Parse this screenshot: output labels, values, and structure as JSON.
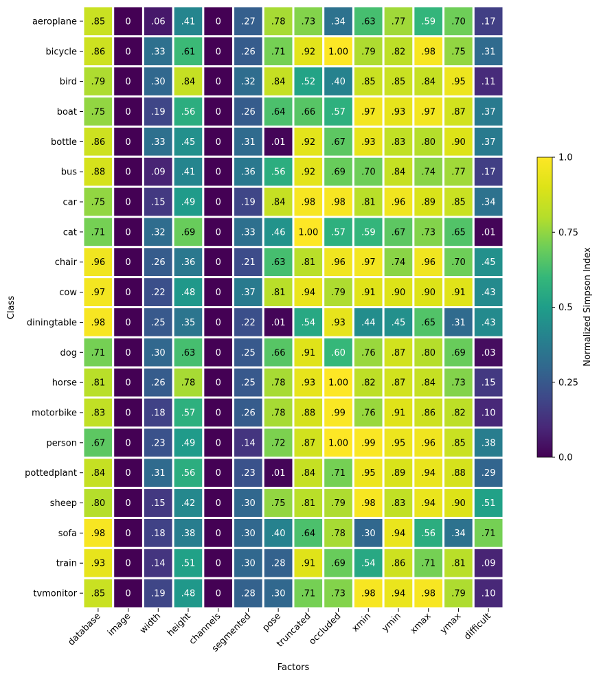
{
  "chart_data": {
    "type": "heatmap",
    "title": "",
    "xlabel": "Factors",
    "ylabel": "Class",
    "colorbar": {
      "label": "Normalized Simpson Index",
      "range": [
        0,
        1
      ],
      "ticks": [
        0,
        0.25,
        0.5,
        0.75,
        1
      ],
      "tick_labels": [
        "0.0",
        "0.25",
        "0.5",
        "0.75",
        "1.0"
      ],
      "colormap": "viridis"
    },
    "x_categories": [
      "database",
      "image",
      "width",
      "height",
      "channels",
      "segmented",
      "pose",
      "truncated",
      "occluded",
      "xmin",
      "ymin",
      "xmax",
      "ymax",
      "difficult"
    ],
    "y_categories": [
      "aeroplane",
      "bicycle",
      "bird",
      "boat",
      "bottle",
      "bus",
      "car",
      "cat",
      "chair",
      "cow",
      "diningtable",
      "dog",
      "horse",
      "motorbike",
      "person",
      "pottedplant",
      "sheep",
      "sofa",
      "train",
      "tvmonitor"
    ],
    "values": [
      [
        0.85,
        0,
        0.06,
        0.41,
        0,
        0.27,
        0.78,
        0.73,
        0.34,
        0.63,
        0.77,
        0.59,
        0.7,
        0.17
      ],
      [
        0.86,
        0,
        0.33,
        0.61,
        0,
        0.26,
        0.71,
        0.92,
        1.0,
        0.79,
        0.82,
        0.98,
        0.75,
        0.31
      ],
      [
        0.79,
        0,
        0.3,
        0.84,
        0,
        0.32,
        0.84,
        0.52,
        0.4,
        0.85,
        0.85,
        0.84,
        0.95,
        0.11
      ],
      [
        0.75,
        0,
        0.19,
        0.56,
        0,
        0.26,
        0.64,
        0.66,
        0.57,
        0.97,
        0.93,
        0.97,
        0.87,
        0.37
      ],
      [
        0.86,
        0,
        0.33,
        0.45,
        0,
        0.31,
        0.01,
        0.92,
        0.67,
        0.93,
        0.83,
        0.8,
        0.9,
        0.37
      ],
      [
        0.88,
        0,
        0.09,
        0.41,
        0,
        0.36,
        0.56,
        0.92,
        0.69,
        0.7,
        0.84,
        0.74,
        0.77,
        0.17
      ],
      [
        0.75,
        0,
        0.15,
        0.49,
        0,
        0.19,
        0.84,
        0.98,
        0.98,
        0.81,
        0.96,
        0.89,
        0.85,
        0.34
      ],
      [
        0.71,
        0,
        0.32,
        0.69,
        0,
        0.33,
        0.46,
        1.0,
        0.57,
        0.59,
        0.67,
        0.73,
        0.65,
        0.01
      ],
      [
        0.96,
        0,
        0.26,
        0.36,
        0,
        0.21,
        0.63,
        0.81,
        0.96,
        0.97,
        0.74,
        0.96,
        0.7,
        0.45
      ],
      [
        0.97,
        0,
        0.22,
        0.48,
        0,
        0.37,
        0.81,
        0.94,
        0.79,
        0.91,
        0.9,
        0.9,
        0.91,
        0.43
      ],
      [
        0.98,
        0,
        0.25,
        0.35,
        0,
        0.22,
        0.01,
        0.54,
        0.93,
        0.44,
        0.45,
        0.65,
        0.31,
        0.43
      ],
      [
        0.71,
        0,
        0.3,
        0.63,
        0,
        0.25,
        0.66,
        0.91,
        0.6,
        0.76,
        0.87,
        0.8,
        0.69,
        0.03
      ],
      [
        0.81,
        0,
        0.26,
        0.78,
        0,
        0.25,
        0.78,
        0.93,
        1.0,
        0.82,
        0.87,
        0.84,
        0.73,
        0.15
      ],
      [
        0.83,
        0,
        0.18,
        0.57,
        0,
        0.26,
        0.78,
        0.88,
        0.99,
        0.76,
        0.91,
        0.86,
        0.82,
        0.1
      ],
      [
        0.67,
        0,
        0.23,
        0.49,
        0,
        0.14,
        0.72,
        0.87,
        1.0,
        0.99,
        0.95,
        0.96,
        0.85,
        0.38
      ],
      [
        0.84,
        0,
        0.31,
        0.56,
        0,
        0.23,
        0.01,
        0.84,
        0.71,
        0.95,
        0.89,
        0.94,
        0.88,
        0.29
      ],
      [
        0.8,
        0,
        0.15,
        0.42,
        0,
        0.3,
        0.75,
        0.81,
        0.79,
        0.98,
        0.83,
        0.94,
        0.9,
        0.51
      ],
      [
        0.98,
        0,
        0.18,
        0.38,
        0,
        0.3,
        0.4,
        0.64,
        0.78,
        0.3,
        0.94,
        0.56,
        0.34,
        0.71
      ],
      [
        0.93,
        0,
        0.14,
        0.51,
        0,
        0.3,
        0.28,
        0.91,
        0.69,
        0.54,
        0.86,
        0.71,
        0.81,
        0.09
      ],
      [
        0.85,
        0,
        0.19,
        0.48,
        0,
        0.28,
        0.3,
        0.71,
        0.73,
        0.98,
        0.94,
        0.98,
        0.79,
        0.1
      ]
    ],
    "cell_labels": [
      [
        ".85",
        "0",
        ".06",
        ".41",
        "0",
        ".27",
        ".78",
        ".73",
        ".34",
        ".63",
        ".77",
        ".59",
        ".70",
        ".17"
      ],
      [
        ".86",
        "0",
        ".33",
        ".61",
        "0",
        ".26",
        ".71",
        ".92",
        "1.00",
        ".79",
        ".82",
        ".98",
        ".75",
        ".31"
      ],
      [
        ".79",
        "0",
        ".30",
        ".84",
        "0",
        ".32",
        ".84",
        ".52",
        ".40",
        ".85",
        ".85",
        ".84",
        ".95",
        ".11"
      ],
      [
        ".75",
        "0",
        ".19",
        ".56",
        "0",
        ".26",
        ".64",
        ".66",
        ".57",
        ".97",
        ".93",
        ".97",
        ".87",
        ".37"
      ],
      [
        ".86",
        "0",
        ".33",
        ".45",
        "0",
        ".31",
        ".01",
        ".92",
        ".67",
        ".93",
        ".83",
        ".80",
        ".90",
        ".37"
      ],
      [
        ".88",
        "0",
        ".09",
        ".41",
        "0",
        ".36",
        ".56",
        ".92",
        ".69",
        ".70",
        ".84",
        ".74",
        ".77",
        ".17"
      ],
      [
        ".75",
        "0",
        ".15",
        ".49",
        "0",
        ".19",
        ".84",
        ".98",
        ".98",
        ".81",
        ".96",
        ".89",
        ".85",
        ".34"
      ],
      [
        ".71",
        "0",
        ".32",
        ".69",
        "0",
        ".33",
        ".46",
        "1.00",
        ".57",
        ".59",
        ".67",
        ".73",
        ".65",
        ".01"
      ],
      [
        ".96",
        "0",
        ".26",
        ".36",
        "0",
        ".21",
        ".63",
        ".81",
        ".96",
        ".97",
        ".74",
        ".96",
        ".70",
        ".45"
      ],
      [
        ".97",
        "0",
        ".22",
        ".48",
        "0",
        ".37",
        ".81",
        ".94",
        ".79",
        ".91",
        ".90",
        ".90",
        ".91",
        ".43"
      ],
      [
        ".98",
        "0",
        ".25",
        ".35",
        "0",
        ".22",
        ".01",
        ".54",
        ".93",
        ".44",
        ".45",
        ".65",
        ".31",
        ".43"
      ],
      [
        ".71",
        "0",
        ".30",
        ".63",
        "0",
        ".25",
        ".66",
        ".91",
        ".60",
        ".76",
        ".87",
        ".80",
        ".69",
        ".03"
      ],
      [
        ".81",
        "0",
        ".26",
        ".78",
        "0",
        ".25",
        ".78",
        ".93",
        "1.00",
        ".82",
        ".87",
        ".84",
        ".73",
        ".15"
      ],
      [
        ".83",
        "0",
        ".18",
        ".57",
        "0",
        ".26",
        ".78",
        ".88",
        ".99",
        ".76",
        ".91",
        ".86",
        ".82",
        ".10"
      ],
      [
        ".67",
        "0",
        ".23",
        ".49",
        "0",
        ".14",
        ".72",
        ".87",
        "1.00",
        ".99",
        ".95",
        ".96",
        ".85",
        ".38"
      ],
      [
        ".84",
        "0",
        ".31",
        ".56",
        "0",
        ".23",
        ".01",
        ".84",
        ".71",
        ".95",
        ".89",
        ".94",
        ".88",
        ".29"
      ],
      [
        ".80",
        "0",
        ".15",
        ".42",
        "0",
        ".30",
        ".75",
        ".81",
        ".79",
        ".98",
        ".83",
        ".94",
        ".90",
        ".51"
      ],
      [
        ".98",
        "0",
        ".18",
        ".38",
        "0",
        ".30",
        ".40",
        ".64",
        ".78",
        ".30",
        ".94",
        ".56",
        ".34",
        ".71"
      ],
      [
        ".93",
        "0",
        ".14",
        ".51",
        "0",
        ".30",
        ".28",
        ".91",
        ".69",
        ".54",
        ".86",
        ".71",
        ".81",
        ".09"
      ],
      [
        ".85",
        "0",
        ".19",
        ".48",
        "0",
        ".28",
        ".30",
        ".71",
        ".73",
        ".98",
        ".94",
        ".98",
        ".79",
        ".10"
      ]
    ],
    "grid": false,
    "legend_placement": "right"
  }
}
